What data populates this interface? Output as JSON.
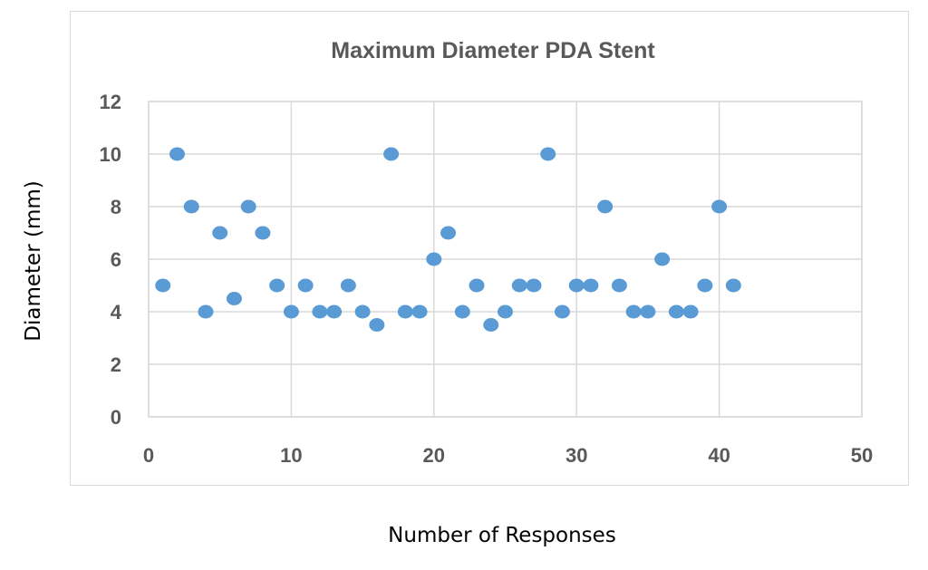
{
  "chart_data": {
    "type": "scatter",
    "title": "Maximum Diameter PDA Stent",
    "xlabel": "Number of Responses",
    "ylabel": "Diameter (mm)",
    "xlim": [
      0,
      50
    ],
    "ylim": [
      0,
      12
    ],
    "xticks": [
      "0",
      "10",
      "20",
      "30",
      "40",
      "50"
    ],
    "yticks": [
      "0",
      "2",
      "4",
      "6",
      "8",
      "10",
      "12"
    ],
    "grid": true,
    "legend": "none",
    "marker_color": "#5b9bd5",
    "series": [
      {
        "x": [
          1,
          2,
          3,
          4,
          5,
          6,
          7,
          8,
          9,
          10,
          11,
          12,
          13,
          14,
          15,
          16,
          17,
          18,
          19,
          20,
          21,
          22,
          23,
          24,
          25,
          26,
          27,
          28,
          29,
          30,
          31,
          32,
          33,
          34,
          35,
          36,
          37,
          38,
          39,
          40,
          41
        ],
        "y": [
          5,
          10,
          8,
          4,
          7,
          4.5,
          8,
          7,
          5,
          4,
          5,
          4,
          4,
          5,
          4,
          3.5,
          10,
          4,
          4,
          6,
          7,
          4,
          5,
          3.5,
          4,
          5,
          5,
          10,
          4,
          5,
          5,
          8,
          5,
          4,
          4,
          6,
          4,
          4,
          5,
          8,
          5
        ]
      }
    ]
  }
}
